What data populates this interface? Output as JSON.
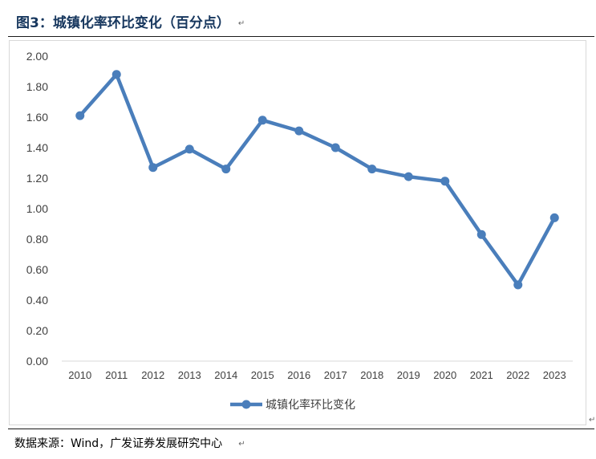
{
  "figure": {
    "title": "图3：城镇化率环比变化（百分点）",
    "source": "数据来源：Wind，广发证券发展研究中心",
    "paragraph_mark": "↵"
  },
  "chart_data": {
    "type": "line",
    "title": "",
    "xlabel": "",
    "ylabel": "",
    "x": [
      "2010",
      "2011",
      "2012",
      "2013",
      "2014",
      "2015",
      "2016",
      "2017",
      "2018",
      "2019",
      "2020",
      "2021",
      "2022",
      "2023"
    ],
    "series": [
      {
        "name": "城镇化率环比变化",
        "values": [
          1.61,
          1.88,
          1.27,
          1.39,
          1.26,
          1.58,
          1.51,
          1.4,
          1.26,
          1.21,
          1.18,
          0.83,
          0.5,
          0.94
        ],
        "color": "#4a7ebb"
      }
    ],
    "ylim": [
      0,
      2.0
    ],
    "yticks": [
      "0.00",
      "0.20",
      "0.40",
      "0.60",
      "0.80",
      "1.00",
      "1.20",
      "1.40",
      "1.60",
      "1.80",
      "2.00"
    ],
    "grid": false,
    "legend_position": "bottom-center",
    "markers": true
  }
}
